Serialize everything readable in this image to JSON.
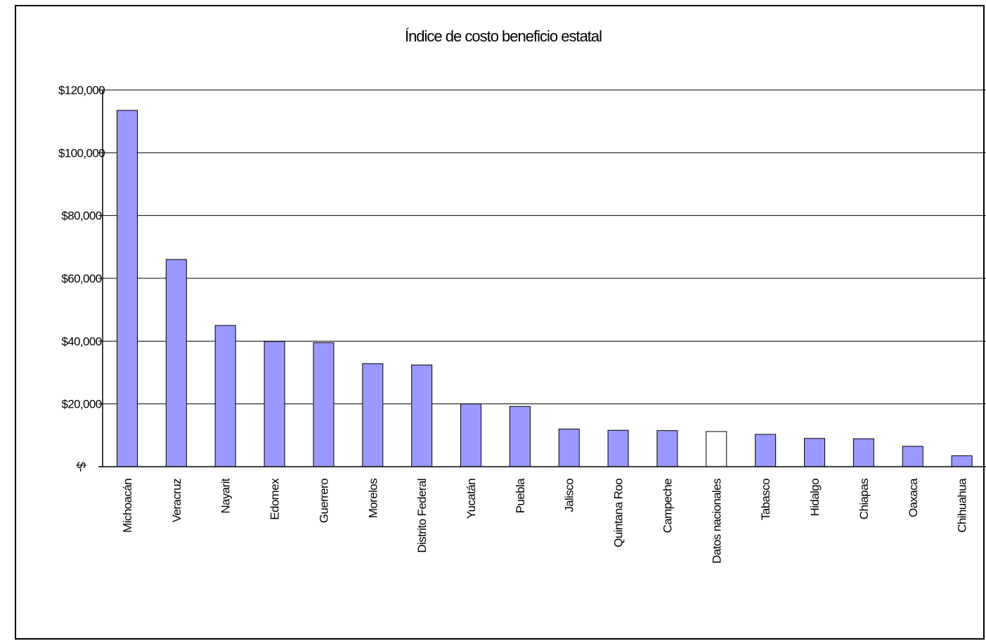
{
  "chart_data": {
    "type": "bar",
    "title": "Índice de costo beneficio estatal",
    "xlabel": "",
    "ylabel": "",
    "ylim": [
      0,
      120000
    ],
    "y_ticks": [
      0,
      20000,
      40000,
      60000,
      80000,
      100000,
      120000
    ],
    "y_tick_labels": [
      "$-",
      "$20,000",
      "$40,000",
      "$60,000",
      "$80,000",
      "$100,000",
      "$120,000"
    ],
    "grid": true,
    "legend": "none",
    "categories": [
      "Michoacán",
      "Veracruz",
      "Nayarit",
      "Edomex",
      "Guerrero",
      "Morelos",
      "Distrito Federal",
      "Yucatán",
      "Puebla",
      "Jalisco",
      "Quintana Roo",
      "Campeche",
      "Datos nacionales",
      "Tabasco",
      "Hidalgo",
      "Chiapas",
      "Oaxaca",
      "Chihuahua"
    ],
    "values": [
      113500,
      66000,
      45000,
      39900,
      39500,
      32800,
      32400,
      20000,
      19200,
      12000,
      11600,
      11500,
      11200,
      10300,
      9000,
      8900,
      6500,
      3500
    ],
    "bar_color": "#9999FF",
    "highlight_category": "Datos nacionales",
    "highlight_color": "#FFFFFF"
  }
}
